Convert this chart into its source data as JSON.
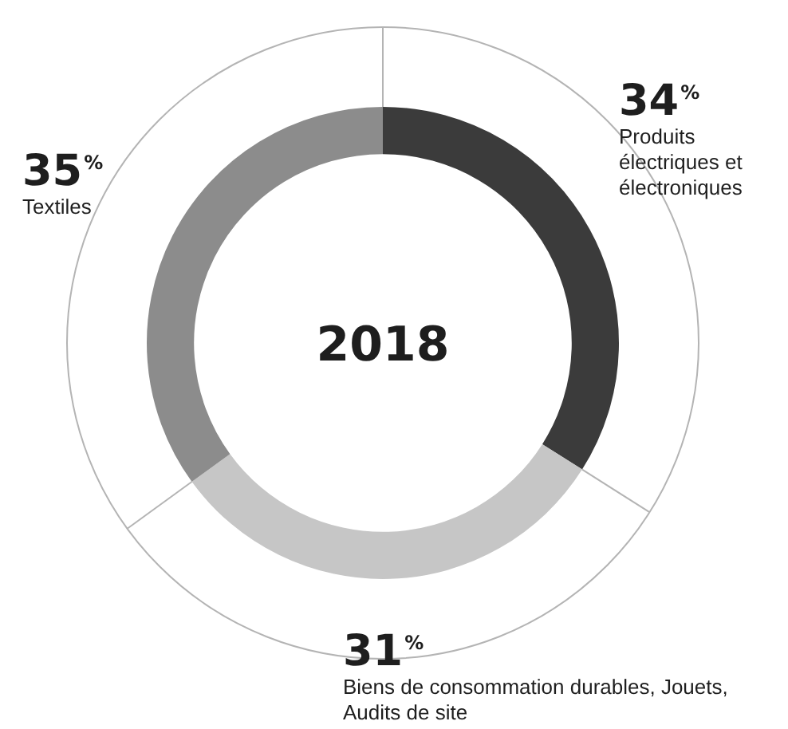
{
  "chart_data": {
    "type": "donut",
    "title": "2018",
    "categories": [
      "Produits électriques et électroniques",
      "Biens de consommation durables, Jouets, Audits de site",
      "Textiles"
    ],
    "values": [
      34,
      31,
      35
    ],
    "colors": [
      "#3b3b3b",
      "#c6c6c6",
      "#8c8c8c"
    ],
    "value_labels": [
      "34%",
      "31%",
      "35%"
    ],
    "legend": false
  }
}
